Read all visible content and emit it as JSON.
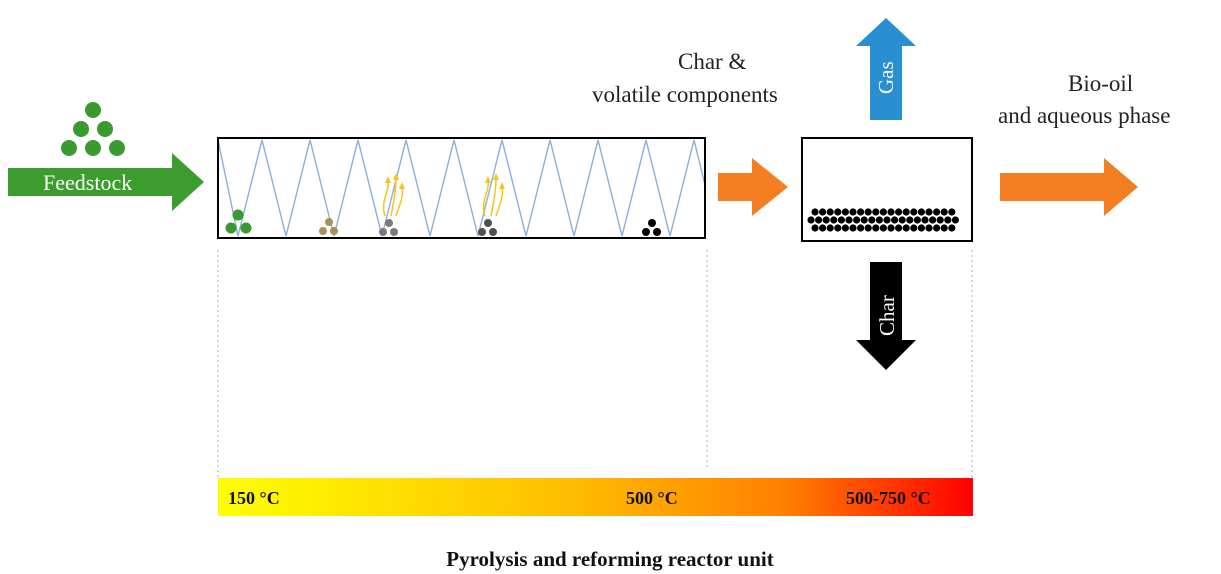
{
  "labels": {
    "feedstock": "Feedstock",
    "char_volatile_line1": "Char &",
    "char_volatile_line2": "volatile components",
    "gas": "Gas",
    "bio_oil_line1": "Bio-oil",
    "bio_oil_line2": "and aqueous phase",
    "char": "Char"
  },
  "temperature_scale": {
    "start": "150 °C",
    "middle": "500 °C",
    "end": "500-750 °C"
  },
  "caption": "Pyrolysis and reforming reactor unit",
  "colors": {
    "feedstock_green": "#3c9c2e",
    "particle_green": "#3a9a30",
    "particle_brown": "#a8925a",
    "particle_grey": "#7a7a7a",
    "particle_dark": "#505050",
    "particle_black": "#000000",
    "flow_orange": "#f47e22",
    "gas_blue": "#2a8fd0",
    "char_black": "#000000",
    "zigzag_blue": "#8fb3dc",
    "volatile_yellow": "#f5c518",
    "gradient_start": "#ffff00",
    "gradient_mid": "#ffa500",
    "gradient_end": "#ff0000"
  },
  "icons": [
    "feedstock-arrow-icon",
    "flow-arrow-icon",
    "gas-arrow-icon",
    "char-arrow-icon",
    "volatile-arrow-icon"
  ]
}
